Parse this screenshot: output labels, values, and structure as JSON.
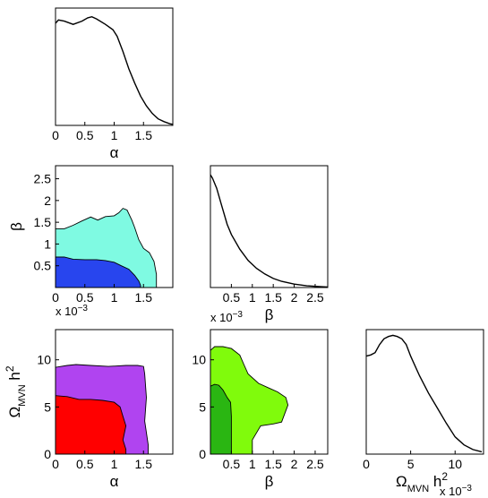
{
  "colors": {
    "alpha_beta_68": "#2845ee",
    "alpha_beta_95": "#7ffae2",
    "alpha_omega_68": "#ff0000",
    "alpha_omega_95": "#b044f0",
    "beta_omega_68": "#2ab612",
    "beta_omega_95": "#80fb0c",
    "line": "#000000"
  },
  "chart_data": [
    {
      "id": "alpha-marginal",
      "type": "line",
      "xlabel": "α",
      "ylabel": "",
      "xlim": [
        0,
        2
      ],
      "ylim": [
        0,
        1.08
      ],
      "xticks": [
        0,
        0.5,
        1,
        1.5
      ],
      "xtick_labels": [
        "0",
        "0.5",
        "1",
        "1.5"
      ],
      "yticks": [],
      "ytick_labels": [],
      "x_exponent": "",
      "y_exponent": "",
      "lines": [
        {
          "x": [
            0,
            0.05,
            0.15,
            0.3,
            0.45,
            0.55,
            0.62,
            0.7,
            0.85,
            0.98,
            1.05,
            1.15,
            1.25,
            1.35,
            1.45,
            1.55,
            1.65,
            1.75,
            1.85,
            1.95,
            2.0
          ],
          "y": [
            0.94,
            0.97,
            0.96,
            0.93,
            0.96,
            0.99,
            1.0,
            0.98,
            0.93,
            0.88,
            0.82,
            0.68,
            0.52,
            0.39,
            0.27,
            0.18,
            0.11,
            0.06,
            0.035,
            0.015,
            0.01
          ]
        }
      ],
      "regions": []
    },
    {
      "id": "alpha-beta-contour",
      "type": "area",
      "xlabel": "α",
      "ylabel": "β",
      "xlim": [
        0,
        2
      ],
      "ylim": [
        0,
        0.0028
      ],
      "xticks": [
        0,
        0.5,
        1,
        1.5
      ],
      "xtick_labels": [
        "0",
        "0.5",
        "1",
        "1.5"
      ],
      "yticks": [
        0.0005,
        0.001,
        0.0015,
        0.002,
        0.0025
      ],
      "ytick_labels": [
        "0.5",
        "1",
        "1.5",
        "2",
        "2.5"
      ],
      "x_exponent": "",
      "y_exponent": "x 10^-3",
      "lines": [],
      "regions": [
        {
          "level": "95%",
          "color_key": "alpha_beta_95",
          "x": [
            0,
            0,
            0.15,
            0.3,
            0.45,
            0.6,
            0.72,
            0.85,
            1.0,
            1.08,
            1.15,
            1.22,
            1.3,
            1.35,
            1.42,
            1.5,
            1.6,
            1.68,
            1.72,
            1.72
          ],
          "y": [
            0,
            0.00135,
            0.00135,
            0.00143,
            0.00153,
            0.00162,
            0.00155,
            0.00163,
            0.00165,
            0.00172,
            0.00182,
            0.00178,
            0.00155,
            0.00138,
            0.0011,
            0.0009,
            0.0008,
            0.0006,
            0.0003,
            0
          ]
        },
        {
          "level": "68%",
          "color_key": "alpha_beta_68",
          "x": [
            0,
            0,
            0.15,
            0.3,
            0.5,
            0.7,
            0.85,
            1.0,
            1.12,
            1.25,
            1.35,
            1.42,
            1.45,
            1.45
          ],
          "y": [
            0,
            0.0007,
            0.0007,
            0.00065,
            0.00064,
            0.00064,
            0.00062,
            0.00058,
            0.0005,
            0.00042,
            0.00028,
            0.00015,
            5e-05,
            0
          ]
        }
      ]
    },
    {
      "id": "beta-marginal",
      "type": "line",
      "xlabel": "β",
      "ylabel": "",
      "xlim": [
        0,
        0.0028
      ],
      "ylim": [
        0,
        1.08
      ],
      "xticks": [
        0.0005,
        0.001,
        0.0015,
        0.002,
        0.0025
      ],
      "xtick_labels": [
        "0.5",
        "1",
        "1.5",
        "2",
        "2.5"
      ],
      "yticks": [],
      "ytick_labels": [],
      "x_exponent": "x 10^-3",
      "y_exponent": "",
      "lines": [
        {
          "x": [
            0,
            5e-05,
            0.00015,
            0.00025,
            0.0004,
            0.0005,
            0.0007,
            0.0009,
            0.0011,
            0.0013,
            0.0015,
            0.0017,
            0.002,
            0.0023,
            0.0026,
            0.0028
          ],
          "y": [
            1.0,
            0.97,
            0.88,
            0.75,
            0.56,
            0.47,
            0.34,
            0.24,
            0.17,
            0.12,
            0.08,
            0.055,
            0.03,
            0.015,
            0.008,
            0.005
          ]
        }
      ],
      "regions": []
    },
    {
      "id": "alpha-omega-contour",
      "type": "area",
      "xlabel": "α",
      "ylabel": "Ω_MVN h²",
      "xlim": [
        0,
        2
      ],
      "ylim": [
        0,
        0.0132
      ],
      "xticks": [
        0,
        0.5,
        1,
        1.5
      ],
      "xtick_labels": [
        "0",
        "0.5",
        "1",
        "1.5"
      ],
      "yticks": [
        0,
        0.005,
        0.01
      ],
      "ytick_labels": [
        "0",
        "5",
        "10"
      ],
      "x_exponent": "",
      "y_exponent": "",
      "lines": [],
      "regions": [
        {
          "level": "95%",
          "color_key": "alpha_omega_95",
          "x": [
            0,
            0,
            0.2,
            0.35,
            0.6,
            0.9,
            1.2,
            1.4,
            1.5,
            1.52,
            1.55,
            1.52,
            1.58,
            1.58
          ],
          "y": [
            0,
            0.0092,
            0.0094,
            0.0095,
            0.0094,
            0.0093,
            0.0094,
            0.0094,
            0.0093,
            0.0085,
            0.006,
            0.0035,
            0.001,
            0
          ]
        },
        {
          "level": "68%",
          "color_key": "alpha_omega_68",
          "x": [
            0,
            0,
            0.2,
            0.4,
            0.6,
            0.8,
            1.0,
            1.1,
            1.15,
            1.2,
            1.15,
            1.2,
            1.2
          ],
          "y": [
            0,
            0.0062,
            0.0061,
            0.0058,
            0.0058,
            0.0057,
            0.0055,
            0.005,
            0.004,
            0.003,
            0.0015,
            0.0005,
            0
          ]
        }
      ]
    },
    {
      "id": "beta-omega-contour",
      "type": "area",
      "xlabel": "β",
      "ylabel": "",
      "xlim": [
        0,
        0.0028
      ],
      "ylim": [
        0,
        0.0132
      ],
      "xticks": [
        0.0005,
        0.001,
        0.0015,
        0.002,
        0.0025
      ],
      "xtick_labels": [
        "0.5",
        "1",
        "1.5",
        "2",
        "2.5"
      ],
      "yticks": [
        0,
        0.005,
        0.01
      ],
      "ytick_labels": [
        "0",
        "5",
        "10"
      ],
      "x_exponent": "",
      "y_exponent": "",
      "lines": [],
      "regions": [
        {
          "level": "95%",
          "color_key": "beta_omega_95",
          "x": [
            0,
            0,
            0.0001,
            0.0003,
            0.0005,
            0.0007,
            0.0008,
            0.0009,
            0.00115,
            0.0014,
            0.0016,
            0.0018,
            0.00185,
            0.0017,
            0.0015,
            0.0012,
            0.001,
            0.001
          ],
          "y": [
            0,
            0.011,
            0.0114,
            0.0114,
            0.0112,
            0.0105,
            0.0095,
            0.0085,
            0.0075,
            0.007,
            0.0066,
            0.006,
            0.0052,
            0.0034,
            0.0032,
            0.003,
            0.0015,
            0
          ]
        },
        {
          "level": "68%",
          "color_key": "beta_omega_68",
          "x": [
            0,
            0,
            0.0001,
            0.0002,
            0.0003,
            0.0004,
            0.00048,
            0.0005,
            0.0005
          ],
          "y": [
            0,
            0.0072,
            0.0074,
            0.0073,
            0.0068,
            0.006,
            0.0055,
            0.004,
            0
          ]
        }
      ]
    },
    {
      "id": "omega-marginal",
      "type": "line",
      "xlabel": "Ω_MVN h²",
      "ylabel": "",
      "xlim": [
        0,
        0.0132
      ],
      "ylim": [
        0,
        1.08
      ],
      "xticks": [
        0,
        0.005,
        0.01
      ],
      "xtick_labels": [
        "0",
        "5",
        "10"
      ],
      "yticks": [],
      "ytick_labels": [],
      "x_exponent": "x 10^-3",
      "y_exponent": "",
      "lines": [
        {
          "x": [
            0,
            0.0005,
            0.001,
            0.0015,
            0.002,
            0.0025,
            0.003,
            0.0035,
            0.004,
            0.0045,
            0.005,
            0.006,
            0.007,
            0.008,
            0.009,
            0.01,
            0.011,
            0.012,
            0.013
          ],
          "y": [
            0.85,
            0.86,
            0.88,
            0.95,
            1.0,
            1.02,
            1.03,
            1.02,
            1.0,
            0.95,
            0.85,
            0.68,
            0.53,
            0.4,
            0.27,
            0.15,
            0.08,
            0.04,
            0.02
          ]
        }
      ],
      "regions": []
    }
  ]
}
